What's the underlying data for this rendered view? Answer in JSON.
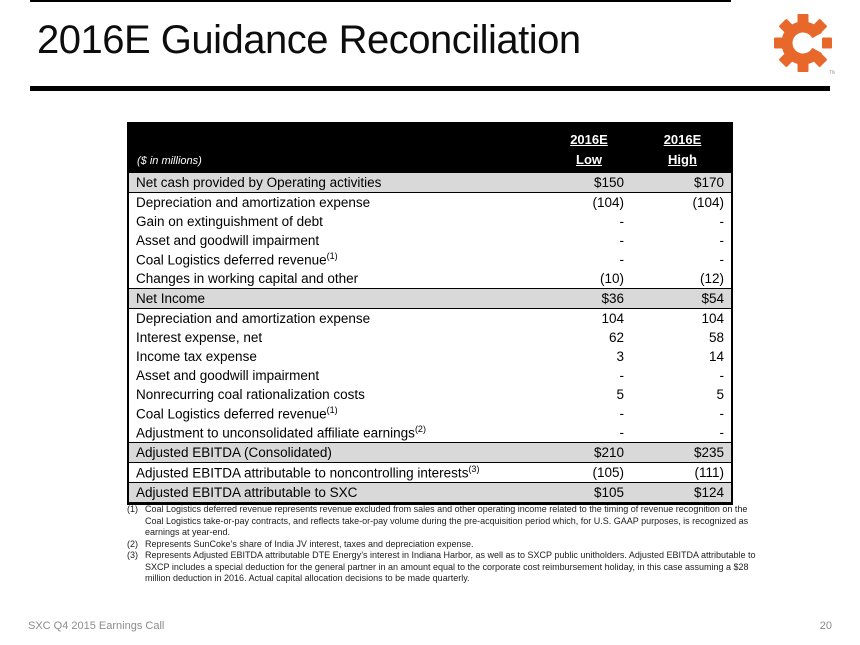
{
  "slide": {
    "title": "2016E Guidance Reconciliation",
    "footer_left": "SXC Q4 2015 Earnings Call",
    "page_number": "20"
  },
  "logo": {
    "name": "suncoke-energy-gear-logo",
    "color": "#E8682B",
    "tm": "TM"
  },
  "table": {
    "units_label": "($ in millions)",
    "col_low": {
      "line1": "2016E",
      "line2": "Low"
    },
    "col_high": {
      "line1": "2016E",
      "line2": "High"
    },
    "colors": {
      "header_bg": "#000000",
      "header_text": "#FFFFFF",
      "band_bg": "#D9D9D9"
    },
    "rows": [
      {
        "label": "Net cash provided by Operating activities",
        "sup": "",
        "low": "$150",
        "high": "$170",
        "style": "gray"
      },
      {
        "label": "Depreciation and amortization expense",
        "sup": "",
        "low": "(104)",
        "high": "(104)",
        "style": "white"
      },
      {
        "label": "Gain on extinguishment of debt",
        "sup": "",
        "low": "-",
        "high": "-",
        "style": "white"
      },
      {
        "label": "Asset and goodwill impairment",
        "sup": "",
        "low": "-",
        "high": "-",
        "style": "white"
      },
      {
        "label": "Coal Logistics deferred revenue",
        "sup": "(1)",
        "low": "-",
        "high": "-",
        "style": "white"
      },
      {
        "label": "Changes in working capital and other",
        "sup": "",
        "low": "(10)",
        "high": "(12)",
        "style": "white"
      },
      {
        "label": "Net Income",
        "sup": "",
        "low": "$36",
        "high": "$54",
        "style": "gray"
      },
      {
        "label": "Depreciation and amortization expense",
        "sup": "",
        "low": "104",
        "high": "104",
        "style": "white"
      },
      {
        "label": "Interest expense, net",
        "sup": "",
        "low": "62",
        "high": "58",
        "style": "white"
      },
      {
        "label": "Income tax expense",
        "sup": "",
        "low": "3",
        "high": "14",
        "style": "white"
      },
      {
        "label": "Asset and goodwill impairment",
        "sup": "",
        "low": "-",
        "high": "-",
        "style": "white"
      },
      {
        "label": "Nonrecurring coal rationalization costs",
        "sup": "",
        "low": "5",
        "high": "5",
        "style": "white"
      },
      {
        "label": "Coal Logistics deferred revenue",
        "sup": "(1)",
        "low": "-",
        "high": "-",
        "style": "white"
      },
      {
        "label": "Adjustment to unconsolidated affiliate earnings",
        "sup": "(2)",
        "low": "-",
        "high": "-",
        "style": "white"
      },
      {
        "label": "Adjusted EBITDA (Consolidated)",
        "sup": "",
        "low": "$210",
        "high": "$235",
        "style": "gray"
      },
      {
        "label": "Adjusted EBITDA attributable to noncontrolling interests",
        "sup": "(3)",
        "low": "(105)",
        "high": "(111)",
        "style": "white"
      },
      {
        "label": "Adjusted EBITDA attributable to SXC",
        "sup": "",
        "low": "$105",
        "high": "$124",
        "style": "gray"
      }
    ]
  },
  "footnotes": [
    {
      "marker": "(1)",
      "text": "Coal Logistics deferred revenue represents revenue excluded from sales and other operating income related to the timing of revenue recognition on the Coal Logistics take-or-pay contracts, and reflects take-or-pay volume during the pre-acquisition period which, for U.S. GAAP purposes, is recognized as earnings at year-end."
    },
    {
      "marker": "(2)",
      "text": "Represents SunCoke’s share of India JV interest, taxes and depreciation expense."
    },
    {
      "marker": "(3)",
      "text": "Represents Adjusted EBITDA attributable DTE Energy’s interest in Indiana Harbor, as well as to SXCP public unitholders. Adjusted EBITDA attributable to SXCP includes a special deduction for the general partner in an amount equal to the corporate cost reimbursement holiday, in this case assuming a $28 million deduction in 2016. Actual capital allocation decisions to be made quarterly."
    }
  ]
}
